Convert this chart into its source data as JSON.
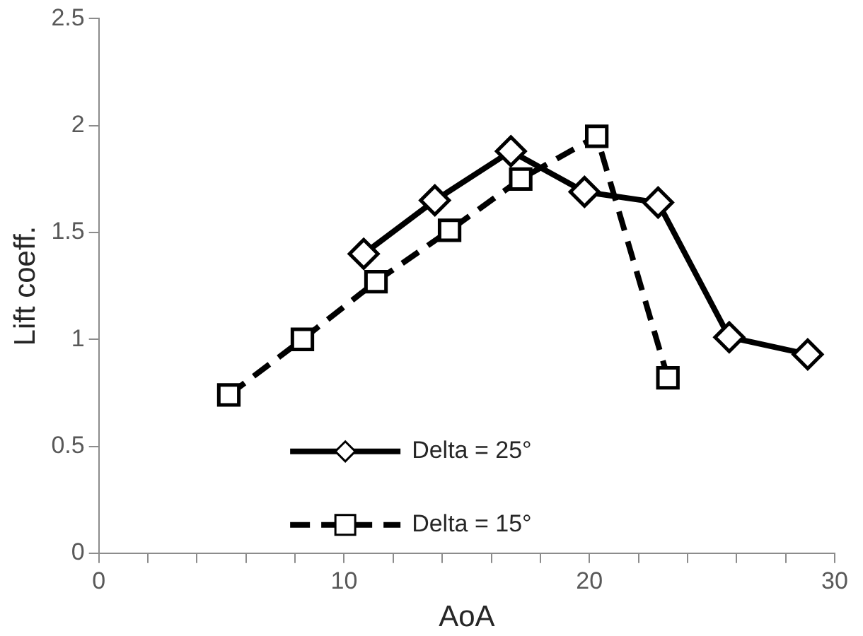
{
  "chart_data": {
    "type": "line",
    "xlabel": "AoA",
    "ylabel": "Lift coeff.",
    "xlim": [
      0,
      30
    ],
    "ylim": [
      0,
      2.5
    ],
    "xticks": [
      0,
      {
        "value": 2,
        "label": null
      },
      {
        "value": 4,
        "label": null
      },
      {
        "value": 6,
        "label": null
      },
      {
        "value": 8,
        "label": null
      },
      10,
      {
        "value": 12,
        "label": null
      },
      {
        "value": 14,
        "label": null
      },
      {
        "value": 16,
        "label": null
      },
      {
        "value": 18,
        "label": null
      },
      20,
      {
        "value": 22,
        "label": null
      },
      {
        "value": 24,
        "label": null
      },
      {
        "value": 26,
        "label": null
      },
      {
        "value": 28,
        "label": null
      },
      30
    ],
    "yticks": [
      0,
      0.5,
      1,
      1.5,
      2,
      2.5
    ],
    "grid": false,
    "legend": "bottom",
    "series": [
      {
        "name": "Delta = 25°",
        "color": "#000000",
        "marker": "diamond",
        "line_style": "solid",
        "x": [
          10.8,
          13.7,
          16.8,
          19.8,
          22.8,
          25.7,
          28.9
        ],
        "values": [
          1.4,
          1.65,
          1.88,
          1.69,
          1.64,
          1.01,
          0.93
        ]
      },
      {
        "name": "Delta = 15°",
        "color": "#000000",
        "marker": "square",
        "line_style": "dashed",
        "x": [
          5.3,
          8.3,
          11.3,
          14.3,
          17.2,
          20.3,
          23.2
        ],
        "values": [
          0.74,
          1.0,
          1.27,
          1.51,
          1.75,
          1.95,
          0.82
        ]
      }
    ]
  }
}
